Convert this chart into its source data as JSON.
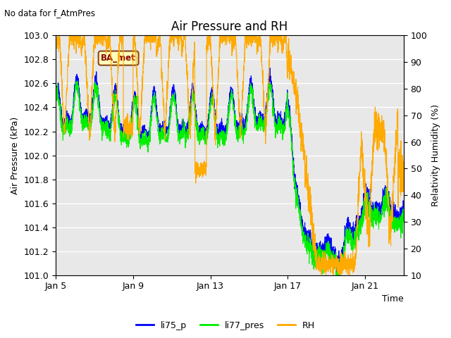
{
  "title": "Air Pressure and RH",
  "top_left_text": "No data for f_AtmPres",
  "xlabel": "Time",
  "ylabel_left": "Air Pressure (kPa)",
  "ylabel_right": "Relativity Humidity (%)",
  "ylim_left": [
    101.0,
    103.0
  ],
  "ylim_right": [
    10,
    100
  ],
  "yticks_left": [
    101.0,
    101.2,
    101.4,
    101.6,
    101.8,
    102.0,
    102.2,
    102.4,
    102.6,
    102.8,
    103.0
  ],
  "yticks_right": [
    10,
    20,
    30,
    40,
    50,
    60,
    70,
    80,
    90,
    100
  ],
  "xtick_days": [
    0,
    4,
    8,
    12,
    16
  ],
  "xtick_labels": [
    "Jan 5",
    "Jan 9",
    "Jan 13",
    "Jan 17",
    "Jan 21"
  ],
  "color_blue": "#0000ff",
  "color_green": "#00ee00",
  "color_orange": "#ffaa00",
  "legend_labels": [
    "li75_p",
    "li77_pres",
    "RH"
  ],
  "annotation_text": "BA_met",
  "background_color": "#e8e8e8",
  "title_fontsize": 12,
  "label_fontsize": 9,
  "tick_fontsize": 9,
  "n_points": 3000,
  "t_max": 18.0,
  "random_seed": 7
}
